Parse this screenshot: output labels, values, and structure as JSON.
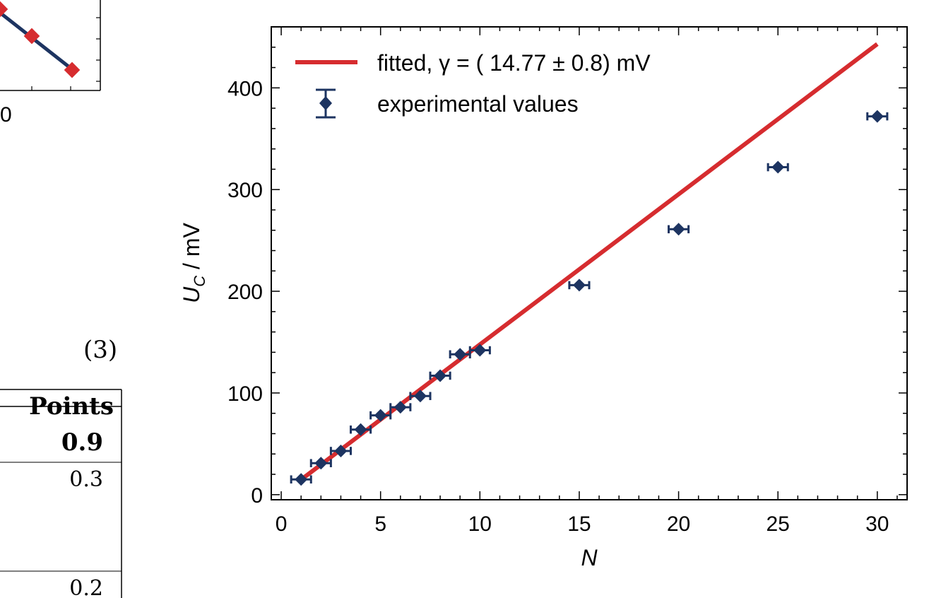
{
  "colors": {
    "fit": "#d62c2f",
    "data": "#1d3461",
    "axis": "#000000"
  },
  "main_chart": {
    "chart_data": {
      "type": "scatter",
      "xlabel": "N",
      "ylabel": "U_C / mV",
      "xlim": [
        -0.5,
        31.5
      ],
      "ylim": [
        -5,
        460
      ],
      "x_ticks": [
        0,
        5,
        10,
        15,
        20,
        25,
        30
      ],
      "y_ticks": [
        0,
        100,
        200,
        300,
        400
      ],
      "grid": false,
      "legend_position": "top-left",
      "series": [
        {
          "name": "fitted, γ = ( 14.77 ± 0.8) mV",
          "kind": "line",
          "x": [
            1,
            30
          ],
          "y": [
            14.77,
            443.1
          ]
        },
        {
          "name": "experimental values",
          "kind": "errorbar",
          "x": [
            1,
            2,
            3,
            4,
            5,
            6,
            7,
            8,
            9,
            10,
            15,
            20,
            25,
            30
          ],
          "y": [
            15,
            31,
            43,
            64,
            78,
            86,
            97,
            117,
            138,
            142,
            206,
            261,
            322,
            372
          ],
          "xerr": 0.5,
          "yerr": 4
        }
      ]
    }
  },
  "cropped_left": {
    "tick_label_partial": "0",
    "equation_number": "(3)",
    "table": {
      "header": "Points",
      "rows": [
        {
          "value": "0.9",
          "bold": true
        },
        {
          "value": "0.3",
          "bold": false
        },
        {
          "value": "0.2",
          "bold": false
        }
      ]
    }
  }
}
